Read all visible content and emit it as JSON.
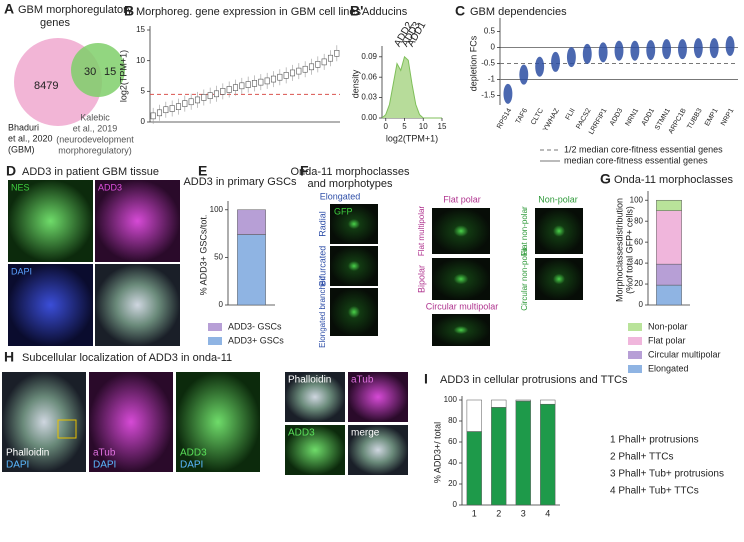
{
  "panels": {
    "letters": [
      "A",
      "B",
      "B'",
      "C",
      "D",
      "E",
      "F",
      "G",
      "H",
      "I"
    ],
    "A": {
      "title_lines": [
        "GBM morphoregulatory",
        "genes"
      ],
      "counts": [
        8479,
        30,
        15
      ],
      "set1_lines": [
        "Bhaduri",
        "et al., 2020",
        "(GBM)"
      ],
      "set2_lines": [
        "Kalebic",
        "et al., 2019",
        "(neurodevelopment",
        "morphoregulatory)"
      ]
    },
    "D": {
      "title": "ADD3 in patient GBM tissue",
      "labels": [
        "NES",
        "ADD3",
        "DAPI"
      ]
    },
    "F": {
      "title_lines": [
        "Onda-11 morphoclasses",
        "and morphotypes"
      ],
      "headers": [
        "Elongated",
        "Flat polar",
        "Non-polar"
      ],
      "stain": "GFP",
      "morphotypes": [
        "Radial",
        "Bifurcated",
        "Elongated branched",
        "Flat multipolar",
        "Bipolar",
        "Circular multipolar",
        "Flat non-polar",
        "Circular non-polar"
      ]
    },
    "H": {
      "title": "Subcellular localization of ADD3 in onda-11",
      "labels": [
        "Phalloidin",
        "DAPI",
        "aTub",
        "DAPI",
        "ADD3",
        "DAPI"
      ],
      "zoom_labels": [
        "Phalloidin",
        "aTub",
        "ADD3",
        "merge"
      ]
    }
  },
  "chart_data": [
    {
      "type": "line",
      "title": "Morphoreg. gene expression in GBM cell lines",
      "y_label": "log2(TPM+1)",
      "values": [
        1,
        1.5,
        2,
        2.2,
        2.5,
        3,
        3.3,
        3.6,
        4,
        4.3,
        4.6,
        5,
        5.3,
        5.6,
        5.9,
        6.1,
        6.3,
        6.5,
        6.7,
        7,
        7.3,
        7.6,
        8,
        8.3,
        8.6,
        9,
        9.4,
        9.8,
        10.4,
        11.2
      ],
      "color": "#555555",
      "threshold": 4.5,
      "threshold_color": "#d9534f",
      "ylim": [
        0,
        15
      ],
      "yticks": [
        0,
        5,
        10,
        15
      ]
    },
    {
      "type": "area",
      "title": "Adducins",
      "y_label": "density",
      "x_label": "log2(TPM+1)",
      "color": "#b7dc9a",
      "x": [
        -1,
        0,
        1,
        2,
        3,
        4,
        5,
        6,
        7,
        8,
        9,
        10,
        11,
        12,
        13,
        14,
        15
      ],
      "y": [
        0,
        0.005,
        0.02,
        0.05,
        0.08,
        0.07,
        0.09,
        0.085,
        0.05,
        0.02,
        0.005,
        0,
        0,
        0,
        0,
        0,
        0
      ],
      "xlim": [
        -1,
        15
      ],
      "xticks": [
        0,
        5,
        10,
        15
      ],
      "ylim": [
        0,
        0.1
      ],
      "yticks": [
        {
          "value": 0,
          "label": "0.00"
        },
        0.03,
        0.06,
        0.09
      ],
      "annotations": [
        {
          "text": "ADD2",
          "x": 3
        },
        {
          "text": "ADD3",
          "x": 5
        },
        {
          "text": "ADD1",
          "x": 6.5
        }
      ]
    },
    {
      "type": "violin",
      "title": "GBM dependencies",
      "y_label": "depletion FCs",
      "color": "#2b4ea2",
      "categories": [
        "RPS14",
        "TAF6",
        "CLTC",
        "YWHAZ",
        "FLII",
        "PACS2",
        "LRRFIP1",
        "ADD3",
        "NRN1",
        "ADD1",
        "STMN1",
        "ARPC1B",
        "TUBB3",
        "EMP1",
        "NRP1"
      ],
      "values": [
        -1.45,
        -0.85,
        -0.6,
        -0.45,
        -0.3,
        -0.2,
        -0.15,
        -0.1,
        -0.1,
        -0.08,
        -0.05,
        -0.05,
        -0.02,
        -0.02,
        0.05
      ],
      "ylim": [
        -1.8,
        0.8
      ],
      "yticks": [
        -1.5,
        -1,
        -0.5,
        0,
        0.5
      ],
      "ref_lines": [
        {
          "value": -0.5,
          "label": "1/2 median core-fitness essential genes",
          "style": "dashed"
        },
        {
          "value": -1,
          "label": "median core-fitness essential genes",
          "style": "solid"
        }
      ]
    },
    {
      "type": "stacked_bar",
      "title": "ADD3 in primary GSCs",
      "y_label": "% ADD3+ GSCs/tot.",
      "series": [
        {
          "name": "ADD3+ GSCs",
          "color": "#8fb4e3",
          "values": [
            74
          ]
        },
        {
          "name": "ADD3- GSCs",
          "color": "#b79fd6",
          "values": [
            26
          ]
        }
      ],
      "ylim": [
        0,
        105
      ],
      "yticks": [
        0,
        50,
        100
      ]
    },
    {
      "type": "stacked_bar",
      "title": "Onda-11 morphoclasses",
      "y_label": "Morphoclassesdistribution",
      "y_label2": "(%of total GFP+ cells)",
      "series": [
        {
          "name": "Elongated",
          "color": "#8fb4e3",
          "values": [
            19
          ]
        },
        {
          "name": "Circular multipolar",
          "color": "#b79fd6",
          "values": [
            20
          ]
        },
        {
          "name": "Flat polar",
          "color": "#f0b6dc",
          "values": [
            51
          ]
        },
        {
          "name": "Non-polar",
          "color": "#b9e39a",
          "values": [
            10
          ]
        }
      ],
      "ylim": [
        0,
        105
      ],
      "yticks": [
        0,
        20,
        40,
        60,
        80,
        100
      ]
    },
    {
      "type": "stacked_bar",
      "title": "ADD3 in cellular protrusions and TTCs",
      "y_label": "% ADD3+/ total",
      "categories": [
        "1",
        "2",
        "3",
        "4"
      ],
      "series": [
        {
          "color": "#1e9a4a",
          "values": [
            70,
            93,
            99,
            96
          ]
        },
        {
          "color": "#ffffff",
          "values": [
            30,
            7,
            1,
            4
          ]
        }
      ],
      "ylim": [
        0,
        100
      ],
      "yticks": [
        0,
        20,
        40,
        60,
        80,
        100
      ],
      "legend_items": [
        "1 Phall+ protrusions",
        "2 Phall+ TTCs",
        "3 Phall+ Tub+ protrusions",
        "4 Phall+ Tub+ TTCs"
      ]
    }
  ]
}
